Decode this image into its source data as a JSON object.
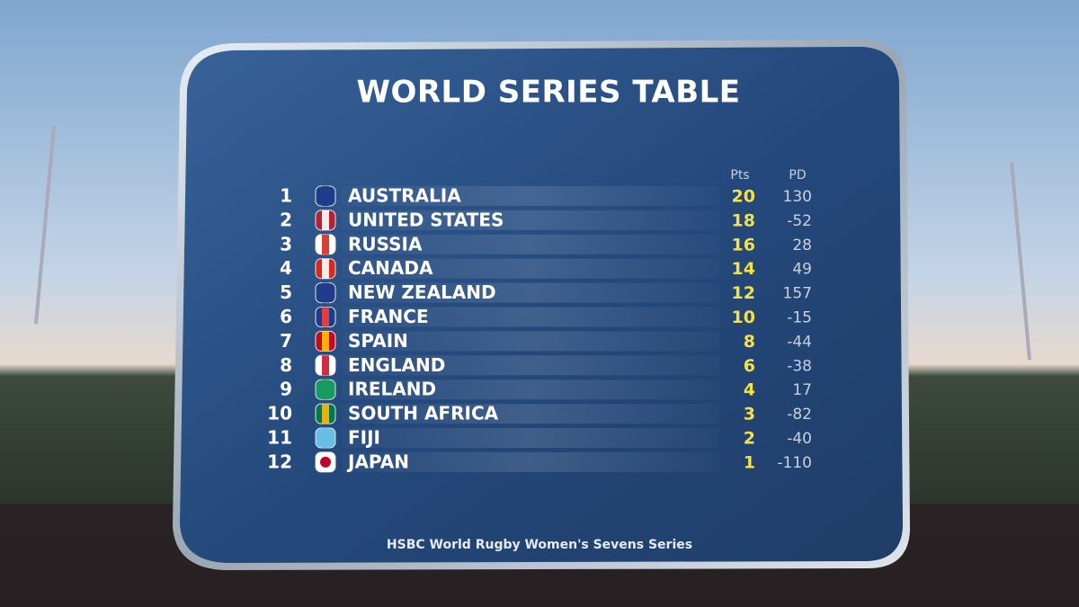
{
  "title": "WORLD SERIES TABLE",
  "columns": {
    "points": "Pts",
    "point_difference": "PD"
  },
  "rows": [
    {
      "rank": 1,
      "team": "AUSTRALIA",
      "points": 20,
      "point_difference": 130
    },
    {
      "rank": 2,
      "team": "UNITED STATES",
      "points": 18,
      "point_difference": -52
    },
    {
      "rank": 3,
      "team": "RUSSIA",
      "points": 16,
      "point_difference": 28
    },
    {
      "rank": 4,
      "team": "CANADA",
      "points": 14,
      "point_difference": 49
    },
    {
      "rank": 5,
      "team": "NEW ZEALAND",
      "points": 12,
      "point_difference": 157
    },
    {
      "rank": 6,
      "team": "FRANCE",
      "points": 10,
      "point_difference": -15
    },
    {
      "rank": 7,
      "team": "SPAIN",
      "points": 8,
      "point_difference": -44
    },
    {
      "rank": 8,
      "team": "ENGLAND",
      "points": 6,
      "point_difference": -38
    },
    {
      "rank": 9,
      "team": "IRELAND",
      "points": 4,
      "point_difference": 17
    },
    {
      "rank": 10,
      "team": "SOUTH AFRICA",
      "points": 3,
      "point_difference": -82
    },
    {
      "rank": 11,
      "team": "FIJI",
      "points": 2,
      "point_difference": -40
    },
    {
      "rank": 12,
      "team": "JAPAN",
      "points": 1,
      "point_difference": -110
    }
  ],
  "footer": "HSBC World Rugby Women's Sevens Series"
}
